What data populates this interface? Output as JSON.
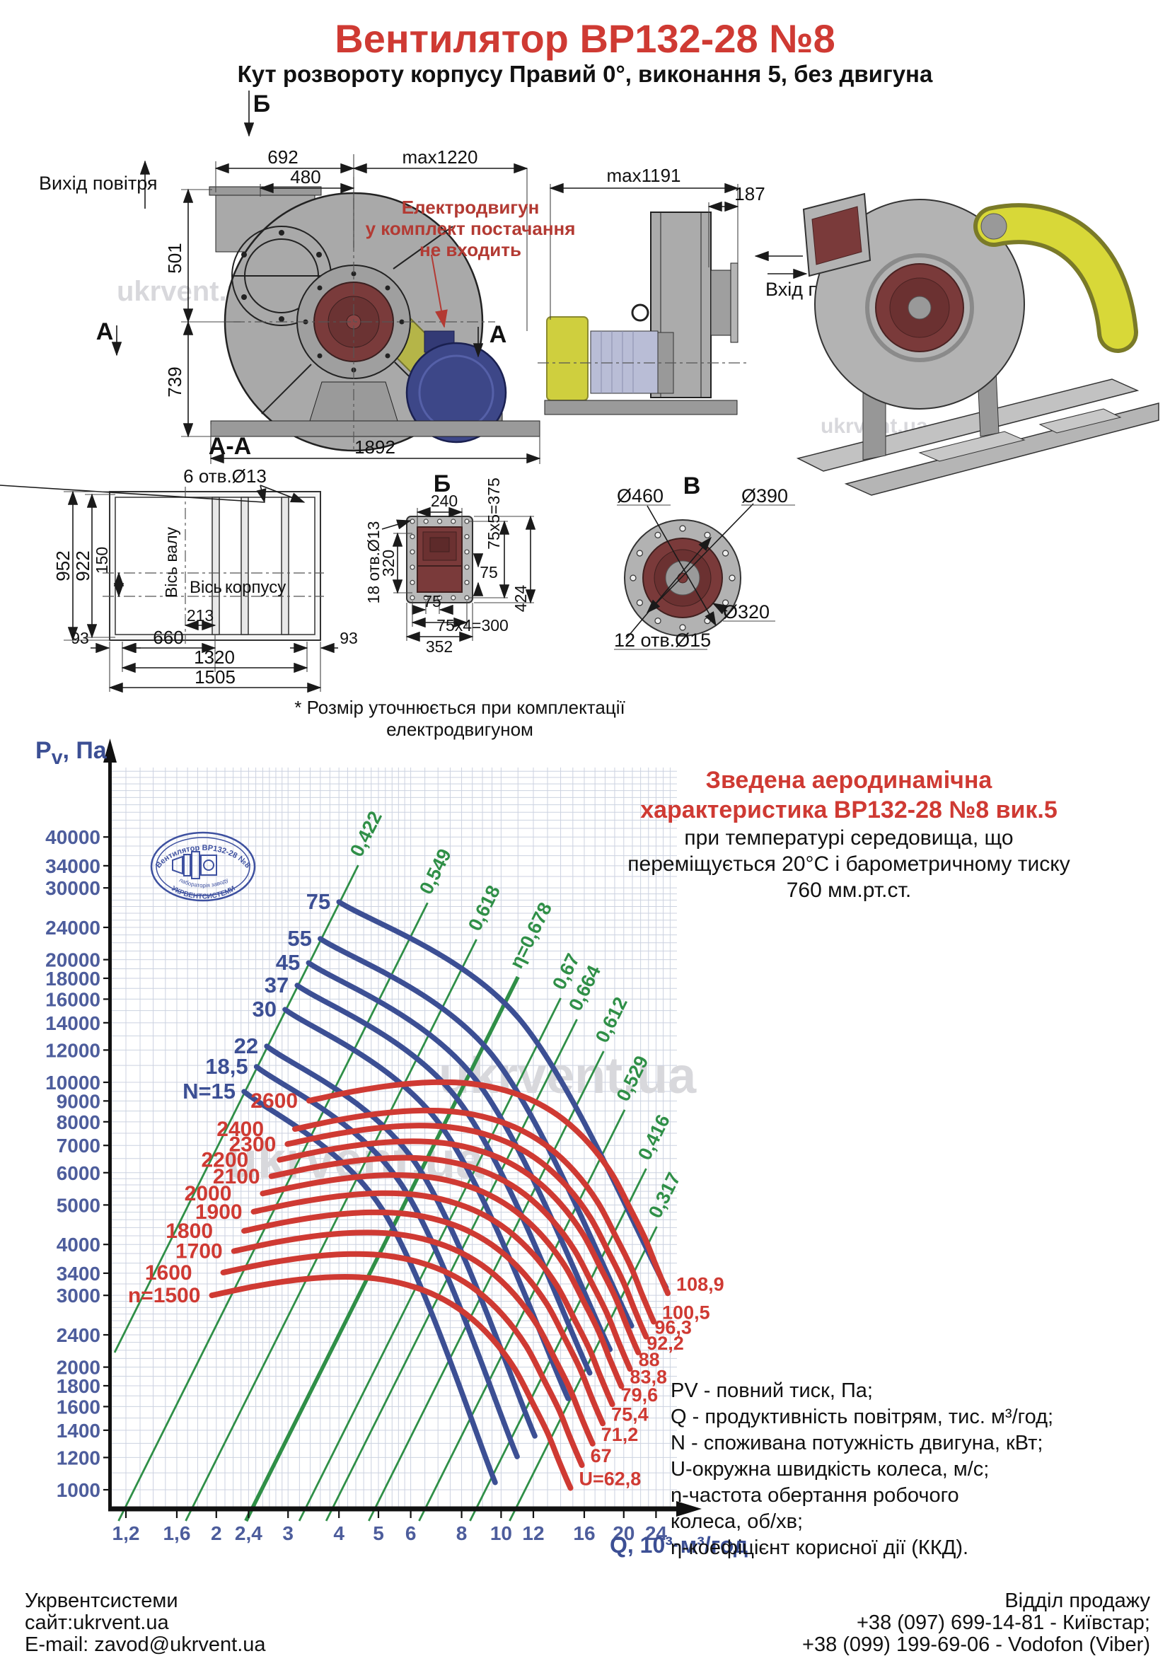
{
  "header": {
    "title": "Вентилятор ВР132-28 №8",
    "subtitle": "Кут розвороту корпусу Правий 0°, виконання 5, без двигуна"
  },
  "drawings": {
    "note_red_1": "Електродвигун",
    "note_red_2": "у комплект постачання",
    "note_red_3": "не входить",
    "footnote": "* Розмір уточнюється при комплектації електродвигуном",
    "air_out": "Вихід повітря",
    "air_in": "Вхід повітря",
    "view_a": "А",
    "view_b": "Б",
    "view_v": "В",
    "section_aa": "А-А",
    "watermark": "ukrvent.ua",
    "main_dims": {
      "d692": "692",
      "d480": "480",
      "dmax1220": "max1220",
      "d501": "501",
      "d739": "739",
      "d1892": "1892"
    },
    "side_dims": {
      "dmax1191": "max1191",
      "d187": "187"
    },
    "aa_dims": {
      "holes": "6 отв.Ø13",
      "d952": "952",
      "d922": "922",
      "d150": "150",
      "d93l": "93",
      "d93r": "93",
      "d213": "213",
      "d660": "660",
      "d1320": "1320",
      "d1505": "1505",
      "axis_shaft": "Вісь валу",
      "axis_body_1": "Вісь",
      "axis_body_2": "корпусу"
    },
    "b_dims": {
      "d240": "240",
      "d320": "320",
      "holes": "18 отв.Ø13",
      "d75b": "75",
      "d352": "352",
      "d75x5": "75x5=375",
      "d424": "424",
      "d75r": "75",
      "d75x4": "75x4=300"
    },
    "v_dims": {
      "d460": "Ø460",
      "d390": "Ø390",
      "d320": "Ø320",
      "holes": "12 отв.Ø15"
    }
  },
  "stamp": {
    "line1": "Вентилятор ВР132-28 №8",
    "line2": "лабораторія заводу",
    "line3": "УКРВЕНТСИСТЕМИ"
  },
  "chart_title": {
    "red1": "Зведена аеродинамічна",
    "red2": "характеристика ВР132-28 №8 вик.5",
    "sub1": "при температурі середовища, що",
    "sub2": "переміщується 20°С і барометричному тиску",
    "sub3": "760 мм.рт.ст."
  },
  "axis": {
    "ylabel_main": "P",
    "ylabel_sub": "v",
    "ylabel_rest": ", Па",
    "xlabel": "Q, 10³·м³/год"
  },
  "chart_data": {
    "type": "line",
    "title": "Зведена аеродинамічна характеристика ВР132-28 №8 вик.5",
    "xlabel": "Q, 10³·м³/год",
    "ylabel": "Pv, Па",
    "x_scale": "log",
    "y_scale": "log",
    "x_range": [
      1.09,
      27.0
    ],
    "y_range": [
      900,
      59300
    ],
    "grid": true,
    "x_tick_values": [
      1.2,
      1.6,
      2,
      2.4,
      3,
      4,
      5,
      6,
      8,
      10,
      12,
      16,
      20,
      24
    ],
    "x_tick_labels": [
      "1,2",
      "1,6",
      "2",
      "2,4",
      "3",
      "4",
      "5",
      "6",
      "8",
      "10",
      "12",
      "16",
      "20",
      "24"
    ],
    "y_tick_values": [
      40000,
      34000,
      30000,
      24000,
      20000,
      18000,
      16000,
      14000,
      12000,
      10000,
      9000,
      8000,
      7000,
      6000,
      5000,
      4000,
      3400,
      3000,
      2400,
      2000,
      1800,
      1600,
      1400,
      1200,
      1000
    ],
    "y_tick_labels": [
      "40000",
      "34000",
      "30000",
      "24000",
      "20000",
      "18000",
      "16000",
      "14000",
      "12000",
      "10000",
      "9000",
      "8000",
      "7000",
      "6000",
      "5000",
      "4000",
      "3400",
      "3000",
      "2400",
      "2000",
      "1800",
      "1600",
      "1400",
      "1200",
      "1000"
    ],
    "speed_curves": {
      "color": "#cf3a33",
      "base_speed": 1500,
      "speeds": [
        1500,
        1600,
        1700,
        1800,
        1900,
        2000,
        2100,
        2200,
        2300,
        2400,
        2600
      ],
      "labels": [
        "n=1500",
        "1600",
        "1700",
        "1800",
        "1900",
        "2000",
        "2100",
        "2200",
        "2300",
        "2400",
        "2600"
      ],
      "u_labels": [
        "U=62,8",
        "67",
        "71,2",
        "75,4",
        "79,6",
        "83,8",
        "88",
        "92,2",
        "96,3",
        "100,5",
        "108,9"
      ],
      "base_points_q_p": [
        [
          1.95,
          3000
        ],
        [
          2.5,
          3160
        ],
        [
          3.2,
          3280
        ],
        [
          4.0,
          3330
        ],
        [
          4.9,
          3300
        ],
        [
          5.9,
          3180
        ],
        [
          7.0,
          2980
        ],
        [
          8.2,
          2700
        ],
        [
          9.5,
          2350
        ],
        [
          10.8,
          1980
        ],
        [
          12.0,
          1620
        ],
        [
          13.0,
          1380
        ],
        [
          13.8,
          1190
        ],
        [
          14.4,
          1075
        ],
        [
          14.8,
          1010
        ]
      ]
    },
    "power_curves": {
      "color": "#3c4f94",
      "curves": [
        {
          "label": "N=15",
          "kw": 15,
          "points": [
            [
              2.34,
              9490
            ],
            [
              5.1,
              4890
            ],
            [
              9.67,
              1042
            ]
          ]
        },
        {
          "label": "18,5",
          "kw": 18.5,
          "points": [
            [
              2.51,
              10920
            ],
            [
              5.67,
              5646
            ],
            [
              10.95,
              1206
            ]
          ]
        },
        {
          "label": "22",
          "kw": 22,
          "points": [
            [
              2.66,
              12260
            ],
            [
              6.16,
              6342
            ],
            [
              12.1,
              1355
            ]
          ]
        },
        {
          "label": "30",
          "kw": 30,
          "points": [
            [
              2.95,
              15090
            ],
            [
              7.13,
              7805
            ],
            [
              14.6,
              1675
            ]
          ]
        },
        {
          "label": "37",
          "kw": 37,
          "points": [
            [
              3.16,
              17290
            ],
            [
              7.89,
              8976
            ],
            [
              16.5,
              1935
            ]
          ]
        },
        {
          "label": "45",
          "kw": 45,
          "points": [
            [
              3.37,
              19640
            ],
            [
              8.63,
              10200
            ],
            [
              18.5,
              2209
            ]
          ]
        },
        {
          "label": "55",
          "kw": 55,
          "points": [
            [
              3.6,
              22510
            ],
            [
              9.49,
              11690
            ],
            [
              20.9,
              2525
            ]
          ]
        },
        {
          "label": "75",
          "kw": 75,
          "points": [
            [
              4.0,
              27710
            ],
            [
              11.03,
              14390
            ],
            [
              25.4,
              3135
            ]
          ]
        }
      ]
    },
    "efficiency_lines": {
      "color": "#2f8f47",
      "labels": [
        "0,422",
        "0,549",
        "0,618",
        "η=0,678",
        "0,67",
        "0,664",
        "0,612",
        "0,529",
        "0,416",
        "0,317"
      ],
      "values": [
        0.422,
        0.549,
        0.618,
        0.678,
        0.67,
        0.664,
        0.612,
        0.529,
        0.416,
        0.317
      ],
      "bold_index": 3,
      "top_points_q_p": [
        [
          4.46,
          34100
        ],
        [
          6.6,
          27580
        ],
        [
          8.7,
          22420
        ],
        [
          11.0,
          18140
        ],
        [
          14.0,
          16090
        ],
        [
          15.35,
          14270
        ],
        [
          17.85,
          11925
        ],
        [
          20.1,
          8560
        ],
        [
          22.7,
          6140
        ],
        [
          24.1,
          4425
        ]
      ]
    }
  },
  "legend": {
    "lines": [
      "PV - повний тиск, Па;",
      "Q - продуктивність повітрям, тис. м³/год;",
      "N - споживана потужність двигуна, кВт;",
      "U-окружна швидкість колеса, м/с;",
      "n-частота обертання робочого",
      "колеса, об/хв;",
      "η-коефіцієнт корисної дії (ККД)."
    ]
  },
  "footer": {
    "company": "Укрвентсистеми",
    "site": "сайт:ukrvent.ua",
    "email": "E-mail: zavod@ukrvent.ua",
    "dept": "Відділ продажу",
    "phone1": "+38 (097) 699-14-81 - Київстар;",
    "phone2": "+38 (099) 199-69-06 - Vodofon (Viber)"
  }
}
